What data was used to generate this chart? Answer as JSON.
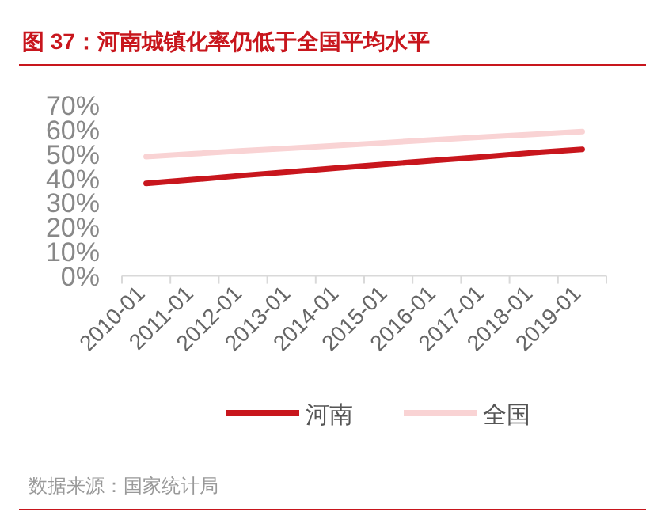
{
  "chart_data": {
    "type": "line",
    "title": "图 37：河南城镇化率仍低于全国平均水平",
    "categories": [
      "2010-01",
      "2011-01",
      "2012-01",
      "2013-01",
      "2014-01",
      "2015-01",
      "2016-01",
      "2017-01",
      "2018-01",
      "2019-01"
    ],
    "series": [
      {
        "name": "河南",
        "color": "#c8161d",
        "values": [
          38,
          39.6,
          41.3,
          42.8,
          44.4,
          46,
          47.5,
          49,
          50.6,
          52
        ]
      },
      {
        "name": "全国",
        "color": "#f9d3d4",
        "values": [
          49,
          50.2,
          51.4,
          52.5,
          53.6,
          54.8,
          56,
          57.1,
          58.2,
          59.3
        ]
      }
    ],
    "ylim": [
      0,
      70
    ],
    "yticks": [
      {
        "value": 0,
        "label": "0%"
      },
      {
        "value": 10,
        "label": "10%"
      },
      {
        "value": 20,
        "label": "20%"
      },
      {
        "value": 30,
        "label": "30%"
      },
      {
        "value": 40,
        "label": "40%"
      },
      {
        "value": 50,
        "label": "50%"
      },
      {
        "value": 60,
        "label": "60%"
      },
      {
        "value": 70,
        "label": "70%"
      }
    ],
    "grid": false,
    "legend": "bottom",
    "marker": "none",
    "line_style": "solid",
    "annotations": [
      "数据来源：国家统计局"
    ]
  }
}
